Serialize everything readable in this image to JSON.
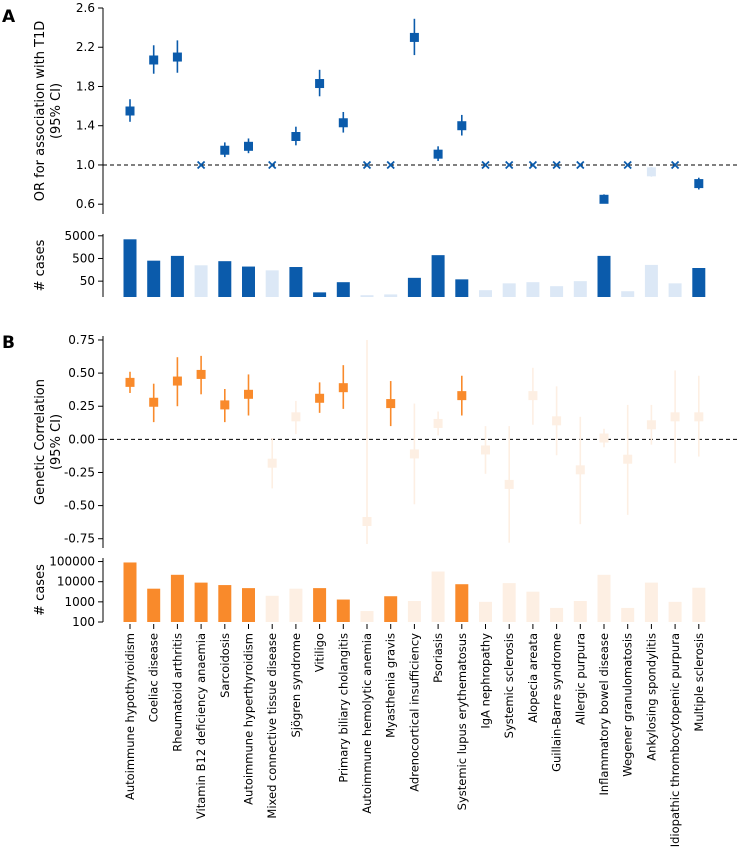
{
  "panels": {
    "a": "A",
    "b": "B"
  },
  "diseases": [
    "Autoimmune hypothyroidism",
    "Coeliac disease",
    "Rheumatoid arthritis",
    "Vitamin B12 deficiency anaemia",
    "Sarcoidosis",
    "Autoimmune hyperthyroidism",
    "Mixed connective tissue disease",
    "Sjögren syndrome",
    "Vitiligo",
    "Primary biliary cholangitis",
    "Autoimmune hemolytic anemia",
    "Myasthenia gravis",
    "Adrenocortical insufficiency",
    "Psoriasis",
    "Systemic lupus erythematosus",
    "IgA nephropathy",
    "Systemic sclerosis",
    "Alopecia areata",
    "Guillain-Barre syndrome",
    "Allergic purpura",
    "Inflammatory bowel disease",
    "Wegener granulomatosis",
    "Ankylosing spondylitis",
    "Idiopathic thrombocytopenic purpura",
    "Multiple sclerosis"
  ],
  "colors": {
    "blue": "#0b5bab",
    "blue_light": "#dce8f6",
    "orange": "#f98a2b",
    "orange_light": "#fdefe3"
  },
  "chart_data": [
    {
      "id": "or_t1d",
      "type": "scatter",
      "ylabel": "OR for association with T1D",
      "ylabel2": "(95% CI)",
      "ylim": [
        0.5,
        2.6
      ],
      "yticks": [
        0.6,
        1.0,
        1.4,
        1.8,
        2.2,
        2.6
      ],
      "ytick_labels": [
        "0.6",
        "1.0",
        "1.4",
        "1.8",
        "2.2",
        "2.6"
      ],
      "reference": 1.0,
      "points": [
        {
          "est": 1.55,
          "lo": 1.44,
          "hi": 1.67,
          "m": "s"
        },
        {
          "est": 2.07,
          "lo": 1.93,
          "hi": 2.22,
          "m": "s"
        },
        {
          "est": 2.1,
          "lo": 1.94,
          "hi": 2.27,
          "m": "s"
        },
        {
          "est": 1.0,
          "m": "x"
        },
        {
          "est": 1.15,
          "lo": 1.08,
          "hi": 1.23,
          "m": "s"
        },
        {
          "est": 1.19,
          "lo": 1.12,
          "hi": 1.27,
          "m": "s"
        },
        {
          "est": 1.0,
          "m": "x"
        },
        {
          "est": 1.29,
          "lo": 1.2,
          "hi": 1.39,
          "m": "s"
        },
        {
          "est": 1.83,
          "lo": 1.7,
          "hi": 1.97,
          "m": "s"
        },
        {
          "est": 1.43,
          "lo": 1.33,
          "hi": 1.54,
          "m": "s"
        },
        {
          "est": 1.0,
          "m": "x"
        },
        {
          "est": 1.0,
          "m": "x"
        },
        {
          "est": 2.3,
          "lo": 2.12,
          "hi": 2.49,
          "m": "s"
        },
        {
          "est": 1.11,
          "lo": 1.04,
          "hi": 1.19,
          "m": "s"
        },
        {
          "est": 1.4,
          "lo": 1.3,
          "hi": 1.51,
          "m": "s"
        },
        {
          "est": 1.0,
          "m": "x"
        },
        {
          "est": 1.0,
          "m": "x"
        },
        {
          "est": 1.0,
          "m": "x"
        },
        {
          "est": 1.0,
          "m": "x"
        },
        {
          "est": 1.0,
          "m": "x"
        },
        {
          "est": 0.65,
          "lo": 0.61,
          "hi": 0.7,
          "m": "s"
        },
        {
          "est": 1.0,
          "m": "x"
        },
        {
          "est": 0.93,
          "lo": 0.88,
          "hi": 0.98,
          "m": "s",
          "faded": true
        },
        {
          "est": 1.0,
          "m": "x"
        },
        {
          "est": 0.81,
          "lo": 0.75,
          "hi": 0.87,
          "m": "s"
        }
      ]
    },
    {
      "id": "cases_a",
      "type": "bar",
      "scale": "log",
      "ylabel": "# cases",
      "ylim": [
        10,
        6000
      ],
      "yticks": [
        50,
        500,
        5000
      ],
      "ytick_labels": [
        "50",
        "500",
        "5000"
      ],
      "values": [
        3500,
        400,
        650,
        250,
        380,
        220,
        150,
        210,
        16,
        45,
        12,
        13,
        70,
        700,
        60,
        20,
        40,
        45,
        30,
        50,
        650,
        18,
        260,
        40,
        190
      ],
      "highlight": [
        true,
        true,
        true,
        false,
        true,
        true,
        false,
        true,
        true,
        true,
        false,
        false,
        true,
        true,
        true,
        false,
        false,
        false,
        false,
        false,
        true,
        false,
        false,
        false,
        true
      ]
    },
    {
      "id": "genetic_corr",
      "type": "scatter",
      "ylabel": "Genetic Correlation",
      "ylabel2": "(95% CI)",
      "ylim": [
        -0.82,
        0.78
      ],
      "yticks": [
        -0.75,
        -0.5,
        -0.25,
        0.0,
        0.25,
        0.5,
        0.75
      ],
      "ytick_labels": [
        "-0.75",
        "-0.50",
        "-0.25",
        "0.00",
        "0.25",
        "0.50",
        "0.75"
      ],
      "reference": 0.0,
      "points": [
        {
          "est": 0.43,
          "lo": 0.35,
          "hi": 0.51,
          "sig": true
        },
        {
          "est": 0.28,
          "lo": 0.13,
          "hi": 0.42,
          "sig": true
        },
        {
          "est": 0.44,
          "lo": 0.25,
          "hi": 0.62,
          "sig": true
        },
        {
          "est": 0.49,
          "lo": 0.34,
          "hi": 0.63,
          "sig": true
        },
        {
          "est": 0.26,
          "lo": 0.13,
          "hi": 0.38,
          "sig": true
        },
        {
          "est": 0.34,
          "lo": 0.18,
          "hi": 0.49,
          "sig": true
        },
        {
          "est": -0.18,
          "lo": -0.37,
          "hi": 0.01,
          "sig": false
        },
        {
          "est": 0.17,
          "lo": 0.04,
          "hi": 0.29,
          "sig": false
        },
        {
          "est": 0.31,
          "lo": 0.2,
          "hi": 0.43,
          "sig": true
        },
        {
          "est": 0.39,
          "lo": 0.23,
          "hi": 0.56,
          "sig": true
        },
        {
          "est": -0.62,
          "lo": -0.79,
          "hi": 0.75,
          "sig": false
        },
        {
          "est": 0.27,
          "lo": 0.1,
          "hi": 0.44,
          "sig": true
        },
        {
          "est": -0.11,
          "lo": -0.49,
          "hi": 0.27,
          "sig": false
        },
        {
          "est": 0.12,
          "lo": 0.03,
          "hi": 0.21,
          "sig": false
        },
        {
          "est": 0.33,
          "lo": 0.18,
          "hi": 0.48,
          "sig": true
        },
        {
          "est": -0.08,
          "lo": -0.26,
          "hi": 0.1,
          "sig": false
        },
        {
          "est": -0.34,
          "lo": -0.78,
          "hi": 0.1,
          "sig": false
        },
        {
          "est": 0.33,
          "lo": 0.11,
          "hi": 0.54,
          "sig": false
        },
        {
          "est": 0.14,
          "lo": -0.12,
          "hi": 0.4,
          "sig": false
        },
        {
          "est": -0.23,
          "lo": -0.64,
          "hi": 0.17,
          "sig": false
        },
        {
          "est": 0.01,
          "lo": -0.06,
          "hi": 0.08,
          "sig": false
        },
        {
          "est": -0.15,
          "lo": -0.57,
          "hi": 0.26,
          "sig": false
        },
        {
          "est": 0.11,
          "lo": -0.04,
          "hi": 0.26,
          "sig": false
        },
        {
          "est": 0.17,
          "lo": -0.18,
          "hi": 0.52,
          "sig": false
        },
        {
          "est": 0.17,
          "lo": -0.13,
          "hi": 0.48,
          "sig": false
        }
      ]
    },
    {
      "id": "cases_b",
      "type": "bar",
      "scale": "log",
      "ylabel": "# cases",
      "ylim": [
        100,
        150000
      ],
      "yticks": [
        100,
        1000,
        10000,
        100000
      ],
      "ytick_labels": [
        "100",
        "1000",
        "10000",
        "100000"
      ],
      "values": [
        90000,
        4500,
        22000,
        9000,
        6800,
        4800,
        2000,
        4500,
        4800,
        1300,
        350,
        1900,
        1100,
        32000,
        7500,
        1000,
        8500,
        3200,
        500,
        1100,
        22000,
        500,
        9000,
        1000,
        5000
      ],
      "highlight": [
        true,
        true,
        true,
        true,
        true,
        true,
        false,
        false,
        true,
        true,
        false,
        true,
        false,
        false,
        true,
        false,
        false,
        false,
        false,
        false,
        false,
        false,
        false,
        false,
        false
      ]
    }
  ]
}
